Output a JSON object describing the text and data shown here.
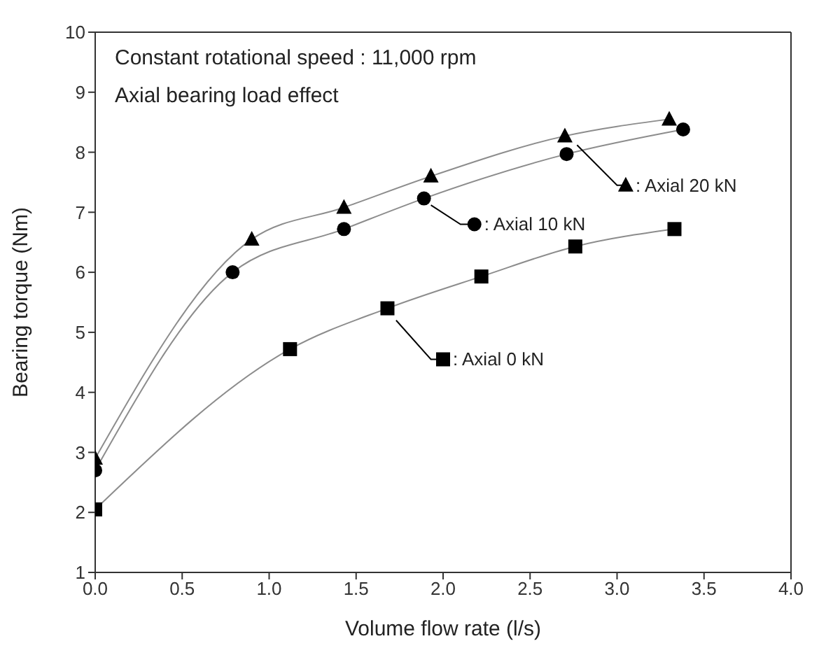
{
  "chart_data": {
    "type": "line",
    "annotations": [
      "Constant rotational speed : 11,000 rpm",
      "Axial bearing load effect"
    ],
    "xlabel": "Volume flow rate (l/s)",
    "ylabel": "Bearing torque (Nm)",
    "xlim": [
      0,
      4
    ],
    "xticks": [
      {
        "value": 0,
        "label": "0.0"
      },
      0.5,
      {
        "value": 1,
        "label": "1.0"
      },
      1.5,
      {
        "value": 2,
        "label": "2.0"
      },
      2.5,
      {
        "value": 3,
        "label": "3.0"
      },
      3.5,
      {
        "value": 4,
        "label": "4.0"
      }
    ],
    "ylim": [
      1,
      10
    ],
    "yticks": [
      1,
      2,
      3,
      4,
      5,
      6,
      7,
      8,
      9,
      10
    ],
    "grid": false,
    "line_style": "solid",
    "legend": "right",
    "series": [
      {
        "name": ": Axial 20 kN",
        "color": "#000000",
        "marker": "triangle",
        "x": [
          0,
          0.9,
          1.43,
          1.93,
          2.7,
          3.3
        ],
        "values": [
          2.9,
          6.55,
          7.08,
          7.6,
          8.27,
          8.55
        ]
      },
      {
        "name": ": Axial 10 kN",
        "color": "#000000",
        "marker": "circle",
        "x": [
          0,
          0.79,
          1.43,
          1.89,
          2.71,
          3.38
        ],
        "values": [
          2.7,
          6.0,
          6.72,
          7.23,
          7.97,
          8.38
        ]
      },
      {
        "name": ": Axial 0 kN",
        "color": "#000000",
        "marker": "square",
        "x": [
          0,
          1.12,
          1.68,
          2.22,
          2.76,
          3.33
        ],
        "values": [
          2.05,
          4.72,
          5.4,
          5.93,
          6.43,
          6.72
        ]
      }
    ]
  }
}
